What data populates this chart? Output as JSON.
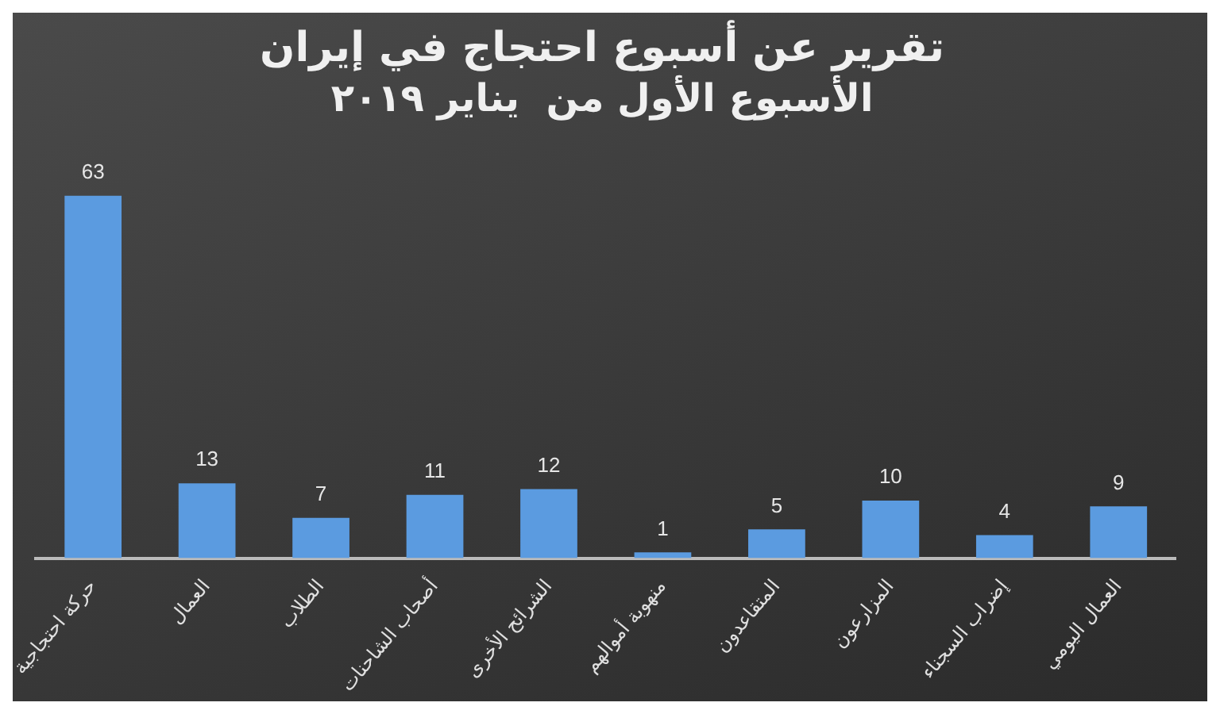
{
  "chart_data": {
    "type": "bar",
    "title": "تقرير عن أسبوع احتجاج في إيران",
    "subtitle": "الأسبوع الأول من  يناير ٢٠١٩",
    "categories": [
      "حركة احتجاجية",
      "العمال",
      "الطلاب",
      "أصحاب الشاحنات",
      "الشرائح الأخرى",
      "منهوبة أموالهم",
      "المتقاعدون",
      "المزارعون",
      "إضراب السجناء",
      "العمال اليومي"
    ],
    "values": [
      63,
      13,
      7,
      11,
      12,
      1,
      5,
      10,
      4,
      9
    ],
    "color": "#5b9be0",
    "data_labels": true,
    "grid": false,
    "legend": false
  }
}
